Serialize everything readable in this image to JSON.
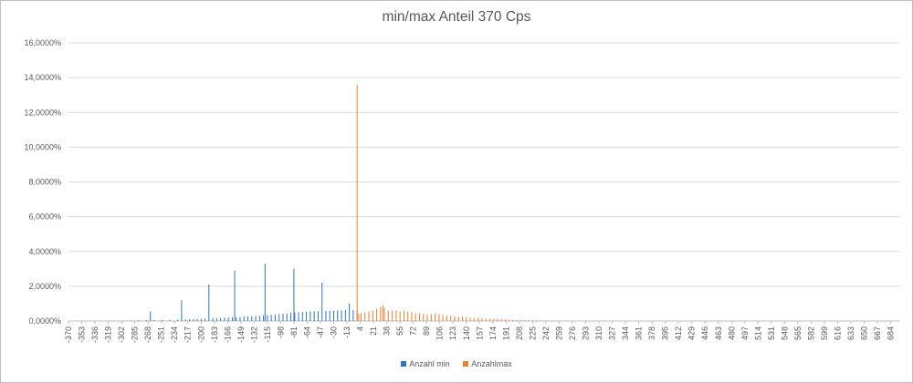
{
  "chart_data": {
    "type": "bar",
    "title": "min/max Anteil 370 Cps",
    "xlabel": "",
    "ylabel": "",
    "ylim": [
      0,
      16
    ],
    "y_ticks": [
      "0,0000%",
      "2,0000%",
      "4,0000%",
      "6,0000%",
      "8,0000%",
      "10,0000%",
      "12,0000%",
      "14,0000%",
      "16,0000%"
    ],
    "x_range": [
      -370,
      695
    ],
    "x_ticks": [
      -370,
      -353,
      -336,
      -319,
      -302,
      -285,
      -268,
      -251,
      -234,
      -217,
      -200,
      -183,
      -166,
      -149,
      -132,
      -115,
      -98,
      -81,
      -64,
      -47,
      -30,
      -13,
      4,
      21,
      38,
      55,
      72,
      89,
      106,
      123,
      140,
      157,
      174,
      191,
      208,
      225,
      242,
      259,
      276,
      293,
      310,
      327,
      344,
      361,
      378,
      395,
      412,
      429,
      446,
      463,
      480,
      497,
      514,
      531,
      548,
      565,
      582,
      599,
      616,
      633,
      650,
      667,
      684
    ],
    "grid": true,
    "legend_position": "bottom",
    "series": [
      {
        "name": "Anzahl min",
        "color": "#2e75b6",
        "points": [
          [
            -300,
            0.02
          ],
          [
            -290,
            0.03
          ],
          [
            -280,
            0.04
          ],
          [
            -270,
            0.05
          ],
          [
            -265,
            0.55
          ],
          [
            -260,
            0.06
          ],
          [
            -250,
            0.06
          ],
          [
            -240,
            0.07
          ],
          [
            -230,
            0.08
          ],
          [
            -225,
            1.2
          ],
          [
            -220,
            0.09
          ],
          [
            -215,
            0.1
          ],
          [
            -210,
            0.11
          ],
          [
            -205,
            0.12
          ],
          [
            -200,
            0.13
          ],
          [
            -195,
            0.14
          ],
          [
            -190,
            2.1
          ],
          [
            -185,
            0.16
          ],
          [
            -180,
            0.17
          ],
          [
            -175,
            0.18
          ],
          [
            -170,
            0.19
          ],
          [
            -165,
            0.2
          ],
          [
            -160,
            0.21
          ],
          [
            -157,
            2.9
          ],
          [
            -155,
            0.22
          ],
          [
            -150,
            0.23
          ],
          [
            -145,
            0.25
          ],
          [
            -140,
            0.26
          ],
          [
            -135,
            0.27
          ],
          [
            -130,
            0.28
          ],
          [
            -125,
            0.3
          ],
          [
            -120,
            0.32
          ],
          [
            -118,
            3.3
          ],
          [
            -115,
            0.34
          ],
          [
            -110,
            0.36
          ],
          [
            -105,
            0.38
          ],
          [
            -100,
            0.4
          ],
          [
            -95,
            0.42
          ],
          [
            -90,
            0.44
          ],
          [
            -85,
            0.46
          ],
          [
            -81,
            3.0
          ],
          [
            -80,
            0.48
          ],
          [
            -75,
            0.5
          ],
          [
            -70,
            0.52
          ],
          [
            -65,
            0.54
          ],
          [
            -60,
            0.55
          ],
          [
            -55,
            0.56
          ],
          [
            -50,
            0.57
          ],
          [
            -45,
            2.2
          ],
          [
            -40,
            0.58
          ],
          [
            -35,
            0.59
          ],
          [
            -30,
            0.6
          ],
          [
            -25,
            0.61
          ],
          [
            -20,
            0.62
          ],
          [
            -15,
            0.63
          ],
          [
            -10,
            1.0
          ],
          [
            -5,
            0.63
          ],
          [
            0,
            0.62
          ]
        ]
      },
      {
        "name": "Anzahlmax",
        "color": "#ed7d31",
        "points": [
          [
            0,
            13.6
          ],
          [
            2,
            0.4
          ],
          [
            5,
            0.45
          ],
          [
            10,
            0.5
          ],
          [
            15,
            0.55
          ],
          [
            20,
            0.6
          ],
          [
            25,
            0.7
          ],
          [
            30,
            0.8
          ],
          [
            33,
            0.9
          ],
          [
            35,
            0.75
          ],
          [
            40,
            0.6
          ],
          [
            45,
            0.6
          ],
          [
            50,
            0.6
          ],
          [
            55,
            0.55
          ],
          [
            60,
            0.6
          ],
          [
            65,
            0.55
          ],
          [
            70,
            0.5
          ],
          [
            75,
            0.45
          ],
          [
            80,
            0.45
          ],
          [
            85,
            0.4
          ],
          [
            90,
            0.35
          ],
          [
            95,
            0.4
          ],
          [
            100,
            0.45
          ],
          [
            105,
            0.4
          ],
          [
            110,
            0.35
          ],
          [
            115,
            0.3
          ],
          [
            120,
            0.3
          ],
          [
            125,
            0.28
          ],
          [
            130,
            0.25
          ],
          [
            135,
            0.25
          ],
          [
            140,
            0.22
          ],
          [
            145,
            0.2
          ],
          [
            150,
            0.18
          ],
          [
            155,
            0.17
          ],
          [
            160,
            0.15
          ],
          [
            165,
            0.14
          ],
          [
            170,
            0.13
          ],
          [
            175,
            0.12
          ],
          [
            180,
            0.11
          ],
          [
            185,
            0.1
          ],
          [
            190,
            0.09
          ],
          [
            195,
            0.08
          ],
          [
            200,
            0.07
          ],
          [
            205,
            0.07
          ],
          [
            210,
            0.06
          ],
          [
            215,
            0.05
          ],
          [
            220,
            0.05
          ],
          [
            225,
            0.04
          ],
          [
            230,
            0.04
          ],
          [
            235,
            0.03
          ],
          [
            240,
            0.03
          ],
          [
            245,
            0.02
          ],
          [
            250,
            0.02
          ],
          [
            255,
            0.02
          ],
          [
            260,
            0.01
          ],
          [
            270,
            0.01
          ]
        ]
      }
    ]
  }
}
